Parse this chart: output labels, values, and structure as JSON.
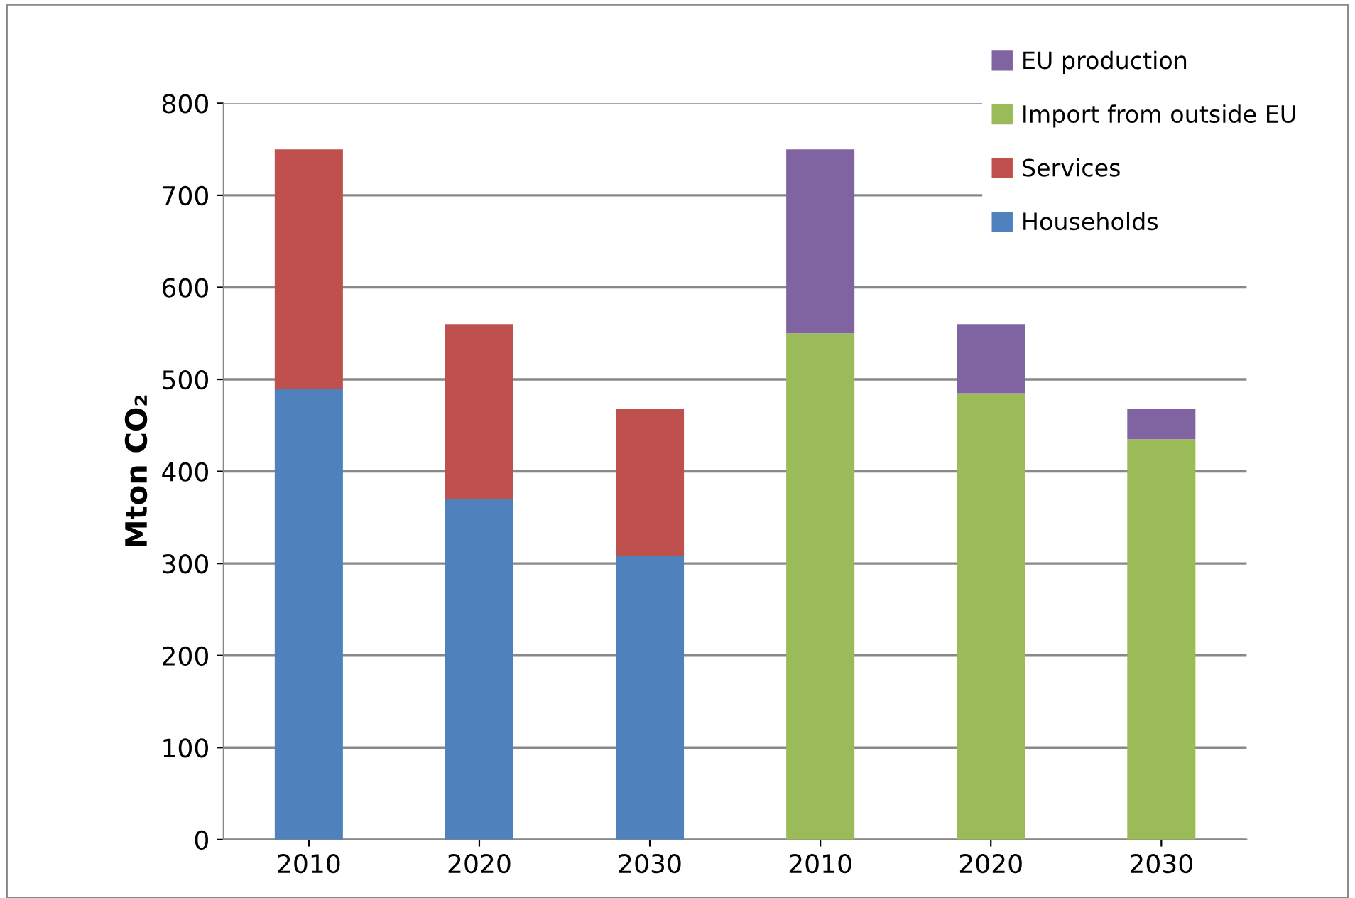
{
  "chart_data": {
    "type": "bar",
    "stacked": true,
    "ylabel": "Mton CO₂",
    "categories": [
      "2010",
      "2020",
      "2030",
      "2010",
      "2020",
      "2030"
    ],
    "series": [
      {
        "name": "Households",
        "color": "#4f81bd",
        "values": [
          490,
          370,
          308,
          null,
          null,
          null
        ]
      },
      {
        "name": "Services",
        "color": "#c0504d",
        "values": [
          260,
          190,
          160,
          null,
          null,
          null
        ]
      },
      {
        "name": "Import from outside EU",
        "color": "#9bbb59",
        "values": [
          null,
          null,
          null,
          550,
          485,
          435
        ]
      },
      {
        "name": "EU production",
        "color": "#8064a2",
        "values": [
          null,
          null,
          null,
          200,
          75,
          33
        ]
      }
    ],
    "ylim": [
      0,
      800
    ],
    "yticks": [
      0,
      100,
      200,
      300,
      400,
      500,
      600,
      700,
      800
    ],
    "grid": "y",
    "legend": "top right"
  }
}
